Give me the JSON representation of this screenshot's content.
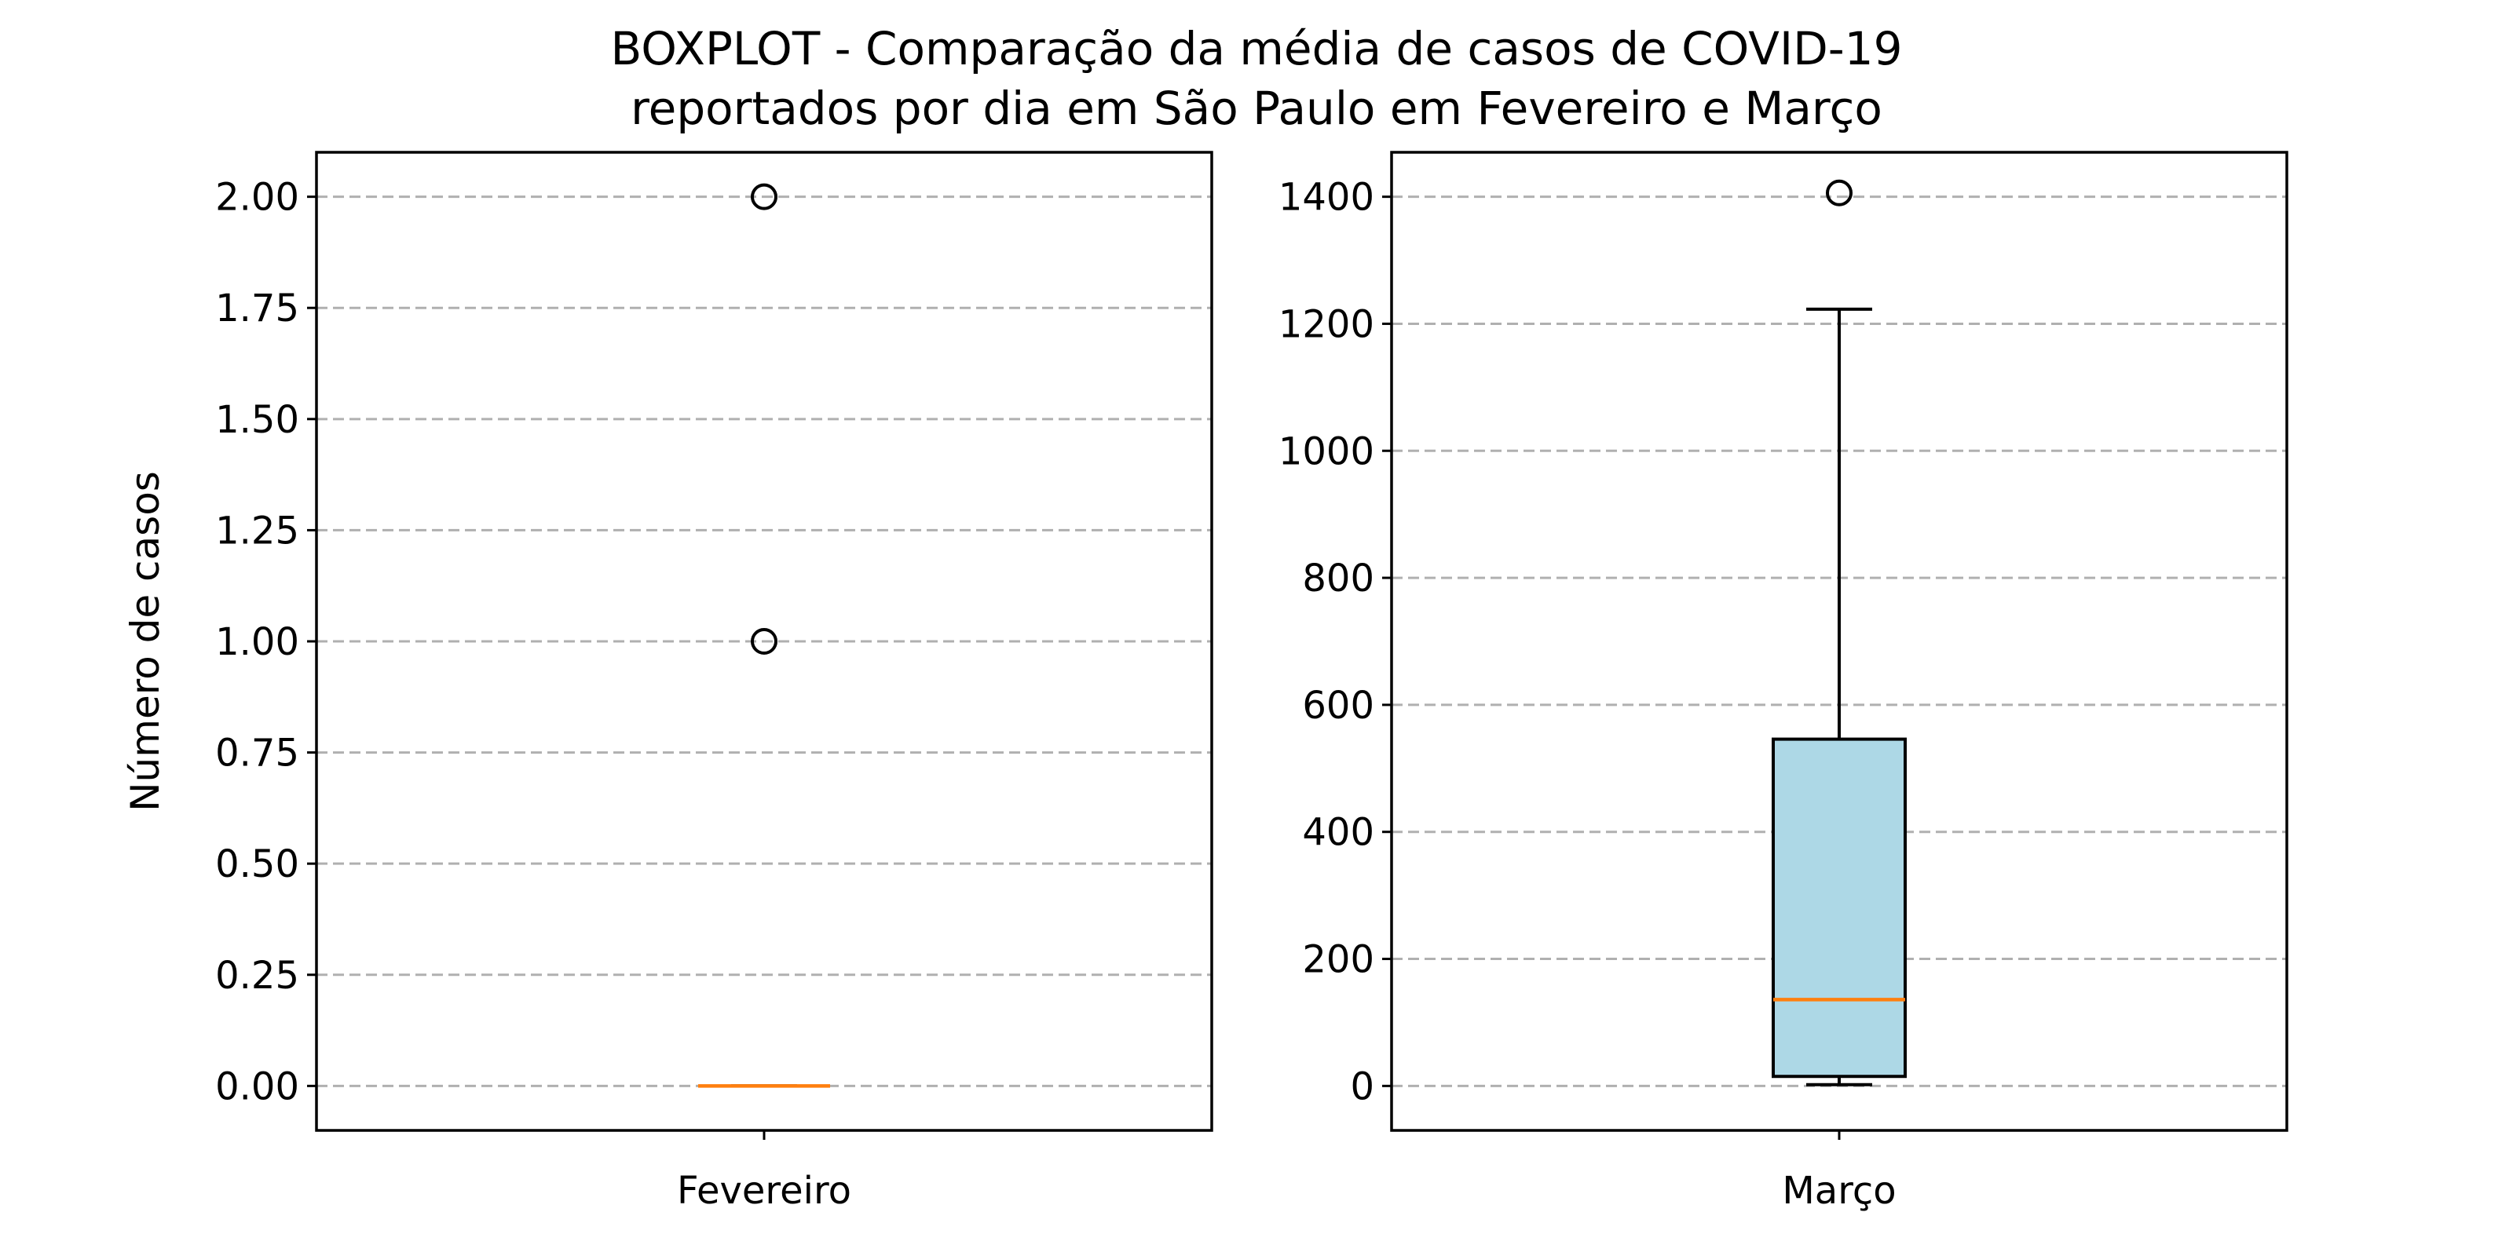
{
  "title_line1": "BOXPLOT - Comparação da média de casos de COVID-19",
  "title_line2": "reportados por dia em São Paulo em Fevereiro e Março",
  "colors": {
    "box_fill": "#add8e6",
    "median": "#ff7f0e",
    "grid": "#b0b0b0"
  },
  "chart_data": [
    {
      "type": "box",
      "category": "Fevereiro",
      "ylabel": "Número de casos",
      "ylim": [
        -0.1,
        2.1
      ],
      "yticks": [
        0.0,
        0.25,
        0.5,
        0.75,
        1.0,
        1.25,
        1.5,
        1.75,
        2.0
      ],
      "ytick_labels": [
        "0.00",
        "0.25",
        "0.50",
        "0.75",
        "1.00",
        "1.25",
        "1.50",
        "1.75",
        "2.00"
      ],
      "grid": "y",
      "box": {
        "whisker_low": 0,
        "q1": 0,
        "median": 0,
        "q3": 0,
        "whisker_high": 0,
        "fliers": [
          1,
          2
        ]
      },
      "filled": false
    },
    {
      "type": "box",
      "category": "Março",
      "ylabel": "",
      "ylim": [
        -70,
        1470
      ],
      "yticks": [
        0,
        200,
        400,
        600,
        800,
        1000,
        1200,
        1400
      ],
      "ytick_labels": [
        "0",
        "200",
        "400",
        "600",
        "800",
        "1000",
        "1200",
        "1400"
      ],
      "grid": "y",
      "box": {
        "whisker_low": 2,
        "q1": 15,
        "median": 136,
        "q3": 546,
        "whisker_high": 1223,
        "fliers": [
          1406
        ]
      },
      "filled": true
    }
  ]
}
